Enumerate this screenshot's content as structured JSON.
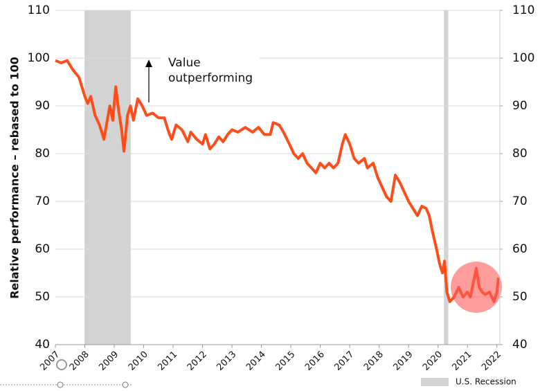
{
  "chart_data": {
    "type": "line",
    "y_label": "Relative performance – rebased to 100",
    "annotation": [
      "Value",
      "outperforming"
    ],
    "legend": "U.S. Recession",
    "recession_color": "#d3d3d3",
    "recessions": [
      [
        2007.99,
        2009.56
      ],
      [
        2020.2,
        2020.35
      ]
    ],
    "xlim": [
      2007,
      2022.1
    ],
    "xticks": [
      2007,
      2008,
      2009,
      2010,
      2011,
      2012,
      2013,
      2014,
      2015,
      2016,
      2017,
      2018,
      2019,
      2020,
      2021,
      2022
    ],
    "ylim": [
      40,
      110
    ],
    "yticks": [
      40,
      50,
      60,
      70,
      80,
      90,
      100,
      110
    ],
    "y2lim": [
      40,
      110
    ],
    "y2ticks": [
      40,
      50,
      60,
      70,
      80,
      90,
      100,
      110
    ],
    "grid": true,
    "x": [
      2007.0,
      2007.2,
      2007.4,
      2007.6,
      2007.8,
      2008.0,
      2008.1,
      2008.2,
      2008.35,
      2008.5,
      2008.65,
      2008.75,
      2008.85,
      2008.95,
      2009.05,
      2009.15,
      2009.25,
      2009.33,
      2009.45,
      2009.55,
      2009.65,
      2009.8,
      2009.95,
      2010.1,
      2010.3,
      2010.5,
      2010.7,
      2010.85,
      2010.95,
      2011.1,
      2011.3,
      2011.5,
      2011.6,
      2011.8,
      2012.0,
      2012.1,
      2012.25,
      2012.4,
      2012.55,
      2012.7,
      2012.85,
      2013.0,
      2013.2,
      2013.45,
      2013.7,
      2013.9,
      2014.1,
      2014.3,
      2014.4,
      2014.6,
      2014.75,
      2014.95,
      2015.1,
      2015.25,
      2015.4,
      2015.55,
      2015.7,
      2015.85,
      2016.0,
      2016.15,
      2016.3,
      2016.45,
      2016.6,
      2016.75,
      2016.85,
      2017.0,
      2017.15,
      2017.3,
      2017.5,
      2017.6,
      2017.8,
      2017.95,
      2018.1,
      2018.25,
      2018.4,
      2018.55,
      2018.7,
      2018.85,
      2019.0,
      2019.15,
      2019.3,
      2019.45,
      2019.6,
      2019.7,
      2019.8,
      2019.95,
      2020.05,
      2020.15,
      2020.22,
      2020.3,
      2020.4,
      2020.55,
      2020.7,
      2020.85,
      2021.0,
      2021.1,
      2021.2,
      2021.3,
      2021.4,
      2021.5,
      2021.6,
      2021.75,
      2021.9,
      2022.0,
      2022.05
    ],
    "series": [
      {
        "color": "#ff4d1a",
        "values": [
          99.5,
          99,
          99.5,
          97.5,
          96,
          92,
          90.5,
          92,
          88,
          86,
          83,
          86.5,
          90,
          87,
          94,
          89,
          85,
          80.5,
          88,
          90,
          87,
          91.5,
          90,
          88,
          88.5,
          87.5,
          87.5,
          84.5,
          83,
          86,
          85,
          82.5,
          84.5,
          83,
          82,
          84,
          81,
          82,
          83.5,
          82.5,
          84,
          85,
          84.5,
          85.5,
          84.5,
          85.5,
          84,
          84,
          86.5,
          86,
          84.5,
          82,
          80,
          79,
          80,
          78,
          77,
          76,
          78,
          77,
          78,
          77,
          78,
          82,
          84,
          82,
          79,
          78,
          79,
          77,
          78,
          75,
          73,
          71,
          70,
          75.5,
          74,
          72,
          70,
          68.5,
          67,
          69,
          68.5,
          67,
          64,
          60,
          57,
          55,
          57.5,
          51,
          49,
          50,
          52,
          50,
          51,
          50,
          53,
          56,
          52,
          51,
          50.5,
          51,
          49,
          51,
          54
        ]
      }
    ]
  }
}
